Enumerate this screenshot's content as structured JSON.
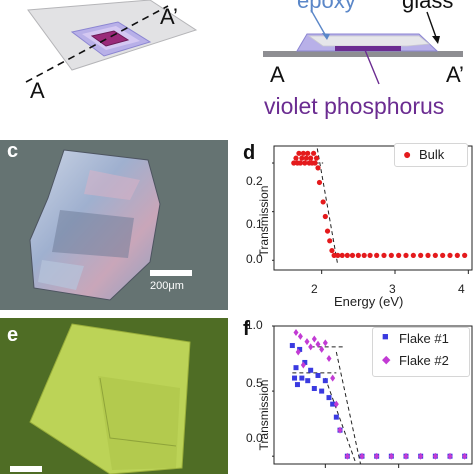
{
  "schematic": {
    "left": {
      "cut_start": "A",
      "cut_end": "A’"
    },
    "right": {
      "epoxy_label": "epoxy",
      "glass_label": "glass",
      "end_left": "A",
      "end_right": "A’",
      "material_label": "violet phosphorus"
    }
  },
  "micrographs": {
    "c": {
      "letter": "c",
      "scalebar_label": "200μm"
    },
    "e": {
      "letter": "e"
    }
  },
  "colors": {
    "violet": "#6b2c91",
    "epoxy_blue": "#5b87c8",
    "bulk": "#e41a1c",
    "flake1": "#3a3ae0",
    "flake2": "#c23bd4"
  },
  "chart_data": [
    {
      "panel": "d",
      "type": "scatter",
      "ylabel": "Transmission",
      "xlabel": "Energy (eV)",
      "xlim": [
        1.35,
        4.05
      ],
      "ylim": [
        -0.02,
        0.235
      ],
      "xticks": [
        "2",
        "3",
        "4"
      ],
      "yticks": [
        "0.0",
        "0.1",
        "0.2"
      ],
      "legend_position": "top-right",
      "series": [
        {
          "name": "Bulk",
          "color": "#e41a1c",
          "x": [
            1.62,
            1.65,
            1.67,
            1.69,
            1.71,
            1.73,
            1.75,
            1.77,
            1.79,
            1.81,
            1.83,
            1.85,
            1.87,
            1.89,
            1.91,
            1.93,
            1.95,
            1.97,
            2.02,
            2.05,
            2.08,
            2.11,
            2.14,
            2.17,
            2.22,
            2.28,
            2.35,
            2.42,
            2.5,
            2.58,
            2.66,
            2.75,
            2.85,
            2.95,
            3.05,
            3.15,
            3.25,
            3.35,
            3.45,
            3.55,
            3.65,
            3.75,
            3.85,
            3.95
          ],
          "y": [
            0.2,
            0.21,
            0.2,
            0.22,
            0.2,
            0.21,
            0.22,
            0.2,
            0.21,
            0.22,
            0.2,
            0.21,
            0.2,
            0.22,
            0.2,
            0.21,
            0.19,
            0.16,
            0.12,
            0.09,
            0.06,
            0.04,
            0.02,
            0.01,
            0.01,
            0.01,
            0.01,
            0.01,
            0.01,
            0.01,
            0.01,
            0.01,
            0.01,
            0.01,
            0.01,
            0.01,
            0.01,
            0.01,
            0.01,
            0.01,
            0.01,
            0.01,
            0.01,
            0.01
          ]
        }
      ],
      "guides": [
        {
          "x": [
            1.62,
            2.02
          ],
          "y": [
            0.2,
            0.2
          ]
        },
        {
          "x": [
            1.94,
            2.22
          ],
          "y": [
            0.23,
            -0.01
          ]
        }
      ]
    },
    {
      "panel": "f",
      "type": "scatter",
      "ylabel": "Transmission",
      "xlim": [
        1.3,
        4.0
      ],
      "ylim": [
        -0.06,
        1.0
      ],
      "yticks": [
        "0.0",
        "0.5",
        "1.0"
      ],
      "legend_position": "top-right",
      "series": [
        {
          "name": "Flake #1",
          "color": "#3a3ae0",
          "x": [
            1.55,
            1.58,
            1.6,
            1.62,
            1.65,
            1.68,
            1.72,
            1.76,
            1.8,
            1.85,
            1.9,
            1.95,
            2.0,
            2.05,
            2.1,
            2.15,
            2.2,
            2.3,
            2.5,
            2.7,
            2.9,
            3.1,
            3.3,
            3.5,
            3.7,
            3.9
          ],
          "y": [
            0.85,
            0.6,
            0.68,
            0.55,
            0.82,
            0.6,
            0.72,
            0.58,
            0.66,
            0.52,
            0.62,
            0.5,
            0.58,
            0.45,
            0.4,
            0.3,
            0.2,
            0.0,
            0.0,
            0.0,
            0.0,
            0.0,
            0.0,
            0.0,
            0.0,
            0.0
          ]
        },
        {
          "name": "Flake #2",
          "color": "#c23bd4",
          "x": [
            1.6,
            1.63,
            1.66,
            1.7,
            1.75,
            1.8,
            1.85,
            1.9,
            1.95,
            2.0,
            2.05,
            2.1,
            2.15,
            2.2,
            2.3,
            2.5,
            2.7,
            2.9,
            3.1,
            3.3,
            3.5,
            3.7,
            3.9
          ],
          "y": [
            0.95,
            0.8,
            0.92,
            0.7,
            0.88,
            0.84,
            0.9,
            0.86,
            0.82,
            0.87,
            0.75,
            0.6,
            0.4,
            0.2,
            0.0,
            0.0,
            0.0,
            0.0,
            0.0,
            0.0,
            0.0,
            0.0,
            0.0
          ]
        }
      ],
      "guides": [
        {
          "x": [
            1.55,
            2.15
          ],
          "y": [
            0.64,
            0.64
          ]
        },
        {
          "x": [
            1.8,
            2.25
          ],
          "y": [
            0.84,
            0.84
          ]
        },
        {
          "x": [
            2.0,
            2.42
          ],
          "y": [
            0.6,
            -0.06
          ]
        },
        {
          "x": [
            2.15,
            2.48
          ],
          "y": [
            0.8,
            -0.06
          ]
        }
      ]
    }
  ]
}
